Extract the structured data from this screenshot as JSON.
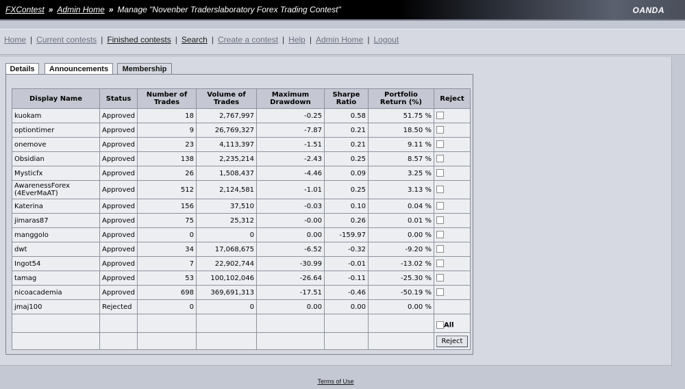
{
  "header": {
    "crumb1": "FXContest",
    "sep1": "»",
    "crumb2": "Admin Home",
    "sep2": "»",
    "title": "Manage \"Novenber Traderslaboratory Forex Trading Contest\"",
    "brand": "OANDA"
  },
  "nav": {
    "home": "Home",
    "current": "Current contests",
    "finished": "Finished contests",
    "search": "Search",
    "create": "Create a contest",
    "help": "Help",
    "admin": "Admin Home",
    "logout": "Logout",
    "pipe": "|"
  },
  "tabs": {
    "details": "Details",
    "announcements": "Announcements",
    "membership": "Membership"
  },
  "table": {
    "headers": {
      "name": "Display Name",
      "status": "Status",
      "trades": "Number of Trades",
      "volume": "Volume of Trades",
      "drawdown": "Maximum Drawdown",
      "sharpe": "Sharpe Ratio",
      "ret": "Portfolio Return (%)",
      "reject": "Reject"
    },
    "rows": [
      {
        "name": "kuokam",
        "status": "Approved",
        "trades": "18",
        "volume": "2,767,997",
        "drawdown": "-0.25",
        "sharpe": "0.58",
        "ret": "51.75 %"
      },
      {
        "name": "optiontimer",
        "status": "Approved",
        "trades": "9",
        "volume": "26,769,327",
        "drawdown": "-7.87",
        "sharpe": "0.21",
        "ret": "18.50 %"
      },
      {
        "name": "onemove",
        "status": "Approved",
        "trades": "23",
        "volume": "4,113,397",
        "drawdown": "-1.51",
        "sharpe": "0.21",
        "ret": "9.11 %"
      },
      {
        "name": "Obsidian",
        "status": "Approved",
        "trades": "138",
        "volume": "2,235,214",
        "drawdown": "-2.43",
        "sharpe": "0.25",
        "ret": "8.57 %"
      },
      {
        "name": "Mysticfx",
        "status": "Approved",
        "trades": "26",
        "volume": "1,508,437",
        "drawdown": "-4.46",
        "sharpe": "0.09",
        "ret": "3.25 %"
      },
      {
        "name": "AwarenessForex (4EverMaAT)",
        "status": "Approved",
        "trades": "512",
        "volume": "2,124,581",
        "drawdown": "-1.01",
        "sharpe": "0.25",
        "ret": "3.13 %"
      },
      {
        "name": "Katerina",
        "status": "Approved",
        "trades": "156",
        "volume": "37,510",
        "drawdown": "-0.03",
        "sharpe": "0.10",
        "ret": "0.04 %"
      },
      {
        "name": "jimaras87",
        "status": "Approved",
        "trades": "75",
        "volume": "25,312",
        "drawdown": "-0.00",
        "sharpe": "0.26",
        "ret": "0.01 %"
      },
      {
        "name": "manggolo",
        "status": "Approved",
        "trades": "0",
        "volume": "0",
        "drawdown": "0.00",
        "sharpe": "-159.97",
        "ret": "0.00 %"
      },
      {
        "name": "dwt",
        "status": "Approved",
        "trades": "34",
        "volume": "17,068,675",
        "drawdown": "-6.52",
        "sharpe": "-0.32",
        "ret": "-9.20 %"
      },
      {
        "name": "Ingot54",
        "status": "Approved",
        "trades": "7",
        "volume": "22,902,744",
        "drawdown": "-30.99",
        "sharpe": "-0.01",
        "ret": "-13.02 %"
      },
      {
        "name": "tamag",
        "status": "Approved",
        "trades": "53",
        "volume": "100,102,046",
        "drawdown": "-26.64",
        "sharpe": "-0.11",
        "ret": "-25.30 %"
      },
      {
        "name": "nicoacademia",
        "status": "Approved",
        "trades": "698",
        "volume": "369,691,313",
        "drawdown": "-17.51",
        "sharpe": "-0.46",
        "ret": "-50.19 %"
      },
      {
        "name": "jmaj100",
        "status": "Rejected",
        "trades": "0",
        "volume": "0",
        "drawdown": "0.00",
        "sharpe": "0.00",
        "ret": "0.00 %"
      }
    ],
    "all_label": "All",
    "reject_button": "Reject"
  },
  "footer": {
    "terms": "Terms of Use"
  }
}
